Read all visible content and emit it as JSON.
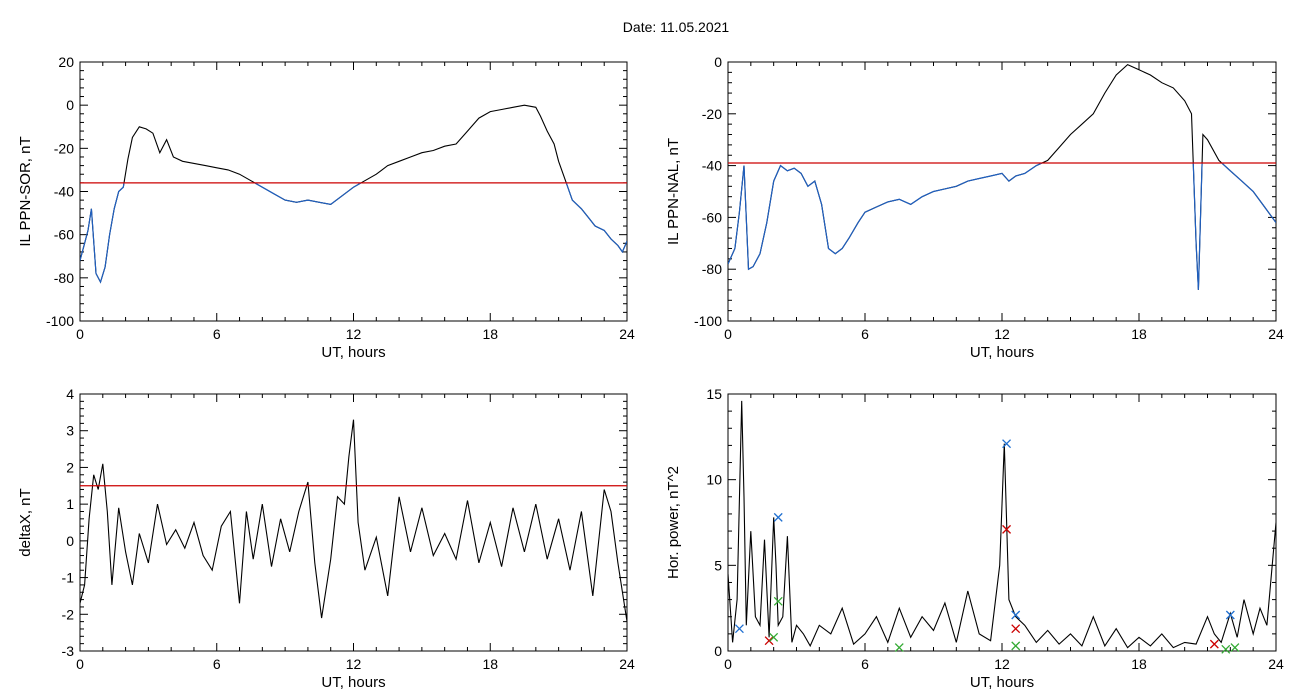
{
  "header": {
    "title": "Date:  11.05.2021"
  },
  "chart_data": [
    {
      "type": "line",
      "ylabel": "IL PPN-SOR, nT",
      "xlabel": "UT, hours",
      "xlim": [
        0,
        24
      ],
      "ylim": [
        -100,
        20
      ],
      "xticks": [
        0,
        6,
        12,
        18,
        24
      ],
      "yticks": [
        -100,
        -80,
        -60,
        -40,
        -20,
        0,
        20
      ],
      "threshold": -36,
      "colors": {
        "line": "#000000",
        "below_threshold": "#1f5fbf",
        "threshold": "#cc0000"
      },
      "series": [
        {
          "x": [
            0,
            0.2,
            0.35,
            0.5,
            0.7,
            0.9,
            1.1,
            1.3,
            1.5,
            1.7,
            1.9,
            2.1,
            2.3,
            2.6,
            2.9,
            3.2,
            3.5,
            3.8,
            4.1,
            4.5,
            5,
            5.5,
            6,
            6.5,
            7,
            7.5,
            8,
            8.5,
            9,
            9.5,
            10,
            10.5,
            11,
            11.5,
            12,
            12.5,
            13,
            13.5,
            14,
            14.5,
            15,
            15.5,
            16,
            16.5,
            17,
            17.5,
            18,
            18.5,
            19,
            19.5,
            20,
            20.2,
            20.5,
            20.8,
            21,
            21.3,
            21.6,
            22,
            22.3,
            22.6,
            23,
            23.3,
            23.6,
            23.8,
            24
          ],
          "y": [
            -72,
            -64,
            -58,
            -48,
            -78,
            -82,
            -75,
            -60,
            -48,
            -40,
            -38,
            -25,
            -15,
            -10,
            -11,
            -13,
            -22,
            -16,
            -24,
            -26,
            -27,
            -28,
            -29,
            -30,
            -32,
            -35,
            -38,
            -41,
            -44,
            -45,
            -44,
            -45,
            -46,
            -42,
            -38,
            -35,
            -32,
            -28,
            -26,
            -24,
            -22,
            -21,
            -19,
            -18,
            -12,
            -6,
            -3,
            -2,
            -1,
            0,
            -1,
            -5,
            -12,
            -18,
            -26,
            -35,
            -44,
            -48,
            -52,
            -56,
            -58,
            -62,
            -65,
            -68,
            -63
          ]
        }
      ]
    },
    {
      "type": "line",
      "ylabel": "IL PPN-NAL, nT",
      "xlabel": "UT, hours",
      "xlim": [
        0,
        24
      ],
      "ylim": [
        -100,
        0
      ],
      "xticks": [
        0,
        6,
        12,
        18,
        24
      ],
      "yticks": [
        -100,
        -80,
        -60,
        -40,
        -20,
        0
      ],
      "threshold": -39,
      "colors": {
        "line": "#000000",
        "below_threshold": "#1f5fbf",
        "threshold": "#cc0000"
      },
      "series": [
        {
          "x": [
            0,
            0.3,
            0.5,
            0.7,
            0.9,
            1.1,
            1.4,
            1.7,
            2,
            2.3,
            2.6,
            2.9,
            3.2,
            3.5,
            3.8,
            4.1,
            4.4,
            4.7,
            5,
            5.3,
            5.7,
            6,
            6.5,
            7,
            7.5,
            8,
            8.5,
            9,
            9.5,
            10,
            10.5,
            11,
            11.5,
            12,
            12.3,
            12.6,
            13,
            13.5,
            14,
            14.5,
            15,
            15.5,
            16,
            16.5,
            17,
            17.5,
            18,
            18.5,
            19,
            19.5,
            20,
            20.3,
            20.5,
            20.6,
            20.8,
            21,
            21.5,
            22,
            22.5,
            23,
            23.5,
            24
          ],
          "y": [
            -78,
            -72,
            -58,
            -40,
            -80,
            -79,
            -74,
            -62,
            -46,
            -40,
            -42,
            -41,
            -43,
            -48,
            -46,
            -55,
            -72,
            -74,
            -72,
            -68,
            -62,
            -58,
            -56,
            -54,
            -53,
            -55,
            -52,
            -50,
            -49,
            -48,
            -46,
            -45,
            -44,
            -43,
            -46,
            -44,
            -43,
            -40,
            -38,
            -33,
            -28,
            -24,
            -20,
            -12,
            -5,
            -1,
            -3,
            -5,
            -8,
            -10,
            -15,
            -20,
            -70,
            -88,
            -28,
            -30,
            -38,
            -42,
            -46,
            -50,
            -56,
            -62
          ]
        }
      ]
    },
    {
      "type": "line",
      "ylabel": "deltaX, nT",
      "xlabel": "UT, hours",
      "xlim": [
        0,
        24
      ],
      "ylim": [
        -3,
        4
      ],
      "xticks": [
        0,
        6,
        12,
        18,
        24
      ],
      "yticks": [
        -3,
        -2,
        -1,
        0,
        1,
        2,
        3,
        4
      ],
      "threshold": 1.5,
      "colors": {
        "line": "#000000",
        "threshold": "#cc0000"
      },
      "series": [
        {
          "x": [
            0,
            0.2,
            0.4,
            0.6,
            0.8,
            1,
            1.2,
            1.4,
            1.7,
            2,
            2.3,
            2.6,
            3,
            3.4,
            3.8,
            4.2,
            4.6,
            5,
            5.4,
            5.8,
            6.2,
            6.6,
            7,
            7.3,
            7.6,
            8,
            8.4,
            8.8,
            9.2,
            9.6,
            10,
            10.3,
            10.6,
            11,
            11.3,
            11.6,
            11.8,
            12,
            12.2,
            12.5,
            13,
            13.5,
            14,
            14.5,
            15,
            15.5,
            16,
            16.5,
            17,
            17.5,
            18,
            18.5,
            19,
            19.5,
            20,
            20.5,
            21,
            21.5,
            22,
            22.5,
            23,
            23.3,
            23.6,
            24
          ],
          "y": [
            -1.7,
            -1.2,
            0.6,
            1.8,
            1.4,
            2.1,
            0.8,
            -1.2,
            0.9,
            -0.3,
            -1.2,
            0.2,
            -0.6,
            1.0,
            -0.1,
            0.3,
            -0.2,
            0.5,
            -0.4,
            -0.8,
            0.4,
            0.8,
            -1.7,
            0.8,
            -0.5,
            1.0,
            -0.7,
            0.6,
            -0.3,
            0.8,
            1.6,
            -0.6,
            -2.1,
            -0.5,
            1.2,
            1.0,
            2.3,
            3.3,
            0.5,
            -0.8,
            0.1,
            -1.5,
            1.2,
            -0.3,
            0.9,
            -0.4,
            0.2,
            -0.5,
            1.1,
            -0.6,
            0.5,
            -0.7,
            0.9,
            -0.3,
            1.0,
            -0.5,
            0.6,
            -0.8,
            0.8,
            -1.5,
            1.4,
            0.8,
            -0.6,
            -2.2
          ]
        }
      ]
    },
    {
      "type": "line",
      "ylabel": "Hor. power, nT^2",
      "xlabel": "UT, hours",
      "xlim": [
        0,
        24
      ],
      "ylim": [
        0,
        15
      ],
      "xticks": [
        0,
        6,
        12,
        18,
        24
      ],
      "yticks": [
        0,
        5,
        10,
        15
      ],
      "colors": {
        "line": "#000000",
        "blue_markers": "#1f6fd0",
        "red_markers": "#cc0000",
        "green_markers": "#33aa33"
      },
      "series": [
        {
          "x": [
            0,
            0.2,
            0.4,
            0.6,
            0.7,
            0.8,
            1,
            1.2,
            1.4,
            1.6,
            1.8,
            2,
            2.1,
            2.2,
            2.4,
            2.6,
            2.8,
            3,
            3.3,
            3.6,
            4,
            4.5,
            5,
            5.5,
            6,
            6.5,
            7,
            7.5,
            8,
            8.5,
            9,
            9.5,
            10,
            10.5,
            11,
            11.5,
            11.9,
            12.1,
            12.3,
            12.6,
            13,
            13.5,
            14,
            14.5,
            15,
            15.5,
            16,
            16.5,
            17,
            17.5,
            18,
            18.5,
            19,
            19.5,
            20,
            20.5,
            21,
            21.3,
            21.6,
            22,
            22.3,
            22.6,
            23,
            23.3,
            23.6,
            24
          ],
          "y": [
            4.5,
            0.5,
            3.0,
            14.6,
            9.0,
            1.5,
            7.0,
            2.0,
            1.5,
            6.5,
            0.8,
            7.8,
            5.0,
            1.5,
            2.0,
            6.7,
            0.5,
            1.5,
            1.0,
            0.3,
            1.5,
            1.0,
            2.5,
            0.4,
            1.0,
            2.0,
            0.5,
            2.5,
            0.8,
            2.0,
            1.2,
            2.8,
            0.5,
            3.5,
            1.0,
            0.6,
            5.0,
            12.1,
            3.0,
            2.0,
            1.5,
            0.5,
            1.2,
            0.4,
            1.0,
            0.3,
            2.0,
            0.3,
            1.3,
            0.2,
            0.8,
            0.3,
            1.0,
            0.2,
            0.5,
            0.4,
            2.0,
            1.0,
            0.5,
            2.2,
            0.8,
            3.0,
            1.0,
            2.5,
            1.5,
            7.5
          ]
        }
      ],
      "markers": {
        "blue": [
          {
            "x": 0.5,
            "y": 1.3
          },
          {
            "x": 2.2,
            "y": 7.8
          },
          {
            "x": 12.2,
            "y": 12.1
          },
          {
            "x": 12.6,
            "y": 2.1
          },
          {
            "x": 22.0,
            "y": 2.1
          }
        ],
        "red": [
          {
            "x": 1.8,
            "y": 0.6
          },
          {
            "x": 12.2,
            "y": 7.1
          },
          {
            "x": 12.6,
            "y": 1.3
          },
          {
            "x": 21.3,
            "y": 0.4
          }
        ],
        "green": [
          {
            "x": 2.0,
            "y": 0.8
          },
          {
            "x": 2.2,
            "y": 2.9
          },
          {
            "x": 7.5,
            "y": 0.2
          },
          {
            "x": 12.6,
            "y": 0.3
          },
          {
            "x": 21.8,
            "y": 0.1
          },
          {
            "x": 22.2,
            "y": 0.2
          }
        ]
      }
    }
  ]
}
